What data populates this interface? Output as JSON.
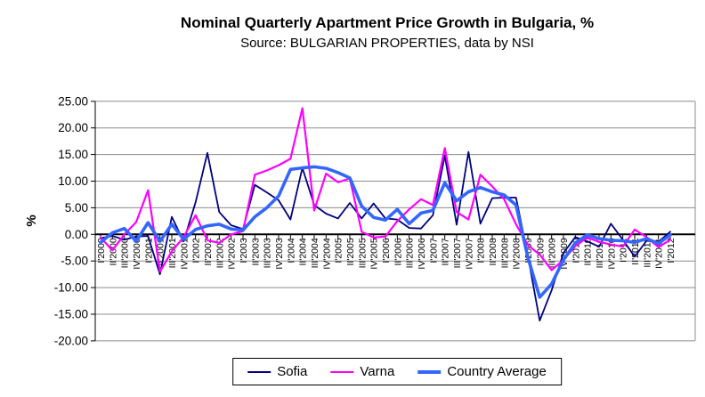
{
  "chart": {
    "title": "Nominal Quarterly Apartment Price Growth in Bulgaria, %",
    "subtitle": "Source: BULGARIAN PROPERTIES, data by NSI",
    "ylabel": "%"
  },
  "chart_data": {
    "type": "line",
    "title": "Nominal Quarterly Apartment Price Growth in Bulgaria, %",
    "subtitle": "Source: BULGARIAN PROPERTIES, data by NSI",
    "ylabel": "%",
    "ylim": [
      -20,
      25
    ],
    "ytick_step": 5,
    "grid": true,
    "legend_position": "bottom",
    "categories": [
      "I'2000",
      "II'2000",
      "III'2000",
      "IV'2000",
      "I'2001",
      "II'2001",
      "III'2001",
      "IV'2001",
      "I'2002",
      "II'2002",
      "III'2002",
      "IV'2002",
      "I'2003",
      "II'2003",
      "III'2003",
      "IV'2003",
      "I'2004",
      "II'2004",
      "III'2004",
      "IV'2004",
      "I'2005",
      "II'2005",
      "III'2005",
      "IV'2005",
      "I'2006",
      "II'2006",
      "III'2006",
      "IV'2006",
      "I'2007",
      "II'2007",
      "III'2007",
      "IV'2007",
      "I'2008",
      "II'2008",
      "III'2008",
      "IV'2008",
      "I'2009",
      "II'2009",
      "III'2009",
      "IV'2009",
      "I'2010",
      "II'2010",
      "III'2010",
      "IV'2010",
      "I'2011",
      "II'2011",
      "III'2011",
      "IV'2011",
      "I'2012"
    ],
    "series": [
      {
        "name": "Sofia",
        "color": "#000080",
        "values": [
          -0.7,
          -0.3,
          -1.0,
          -0.4,
          -0.3,
          -7.5,
          3.3,
          -1.3,
          6.0,
          15.3,
          4.2,
          1.7,
          1.0,
          9.3,
          7.9,
          6.4,
          2.8,
          12.5,
          5.5,
          3.9,
          3.0,
          5.9,
          3.0,
          5.8,
          3.0,
          2.8,
          1.2,
          1.1,
          3.6,
          14.8,
          1.8,
          15.5,
          2.0,
          6.8,
          6.9,
          6.9,
          -4.0,
          -16.2,
          -10.5,
          -3.5,
          -0.5,
          -1.3,
          -2.3,
          2.0,
          -1.0,
          -4.2,
          -1.2,
          -1.4,
          0.5
        ]
      },
      {
        "name": "Varna",
        "color": "#FF00FF",
        "values": [
          -0.6,
          -3.0,
          0.0,
          2.3,
          8.3,
          -7.0,
          -3.2,
          -0.5,
          3.6,
          -1.1,
          -1.6,
          0.0,
          0.6,
          11.2,
          12.0,
          13.0,
          14.2,
          23.7,
          4.5,
          11.4,
          9.8,
          10.5,
          0.5,
          -0.6,
          -0.4,
          2.5,
          4.7,
          6.6,
          5.5,
          16.2,
          4.2,
          2.8,
          11.2,
          9.0,
          6.6,
          1.9,
          -2.0,
          -3.8,
          -6.7,
          -4.8,
          -2.2,
          -0.6,
          -1.4,
          -1.9,
          -2.3,
          0.9,
          -0.5,
          -2.4,
          -1.0
        ]
      },
      {
        "name": "Country Average",
        "color": "#3366FF",
        "values": [
          -1.5,
          0.3,
          1.1,
          -1.3,
          2.2,
          -1.3,
          1.9,
          -0.9,
          0.9,
          1.6,
          1.9,
          1.0,
          0.8,
          3.3,
          5.0,
          7.2,
          12.2,
          12.5,
          12.7,
          12.4,
          11.6,
          10.6,
          5.3,
          3.2,
          2.7,
          4.7,
          2.0,
          4.0,
          4.5,
          9.7,
          6.3,
          8.0,
          8.8,
          8.0,
          7.4,
          5.5,
          -4.3,
          -11.8,
          -9.3,
          -4.8,
          -1.6,
          -0.1,
          -0.8,
          -1.1,
          -1.2,
          -1.5,
          -0.8,
          -1.7,
          -0.1
        ]
      }
    ]
  }
}
